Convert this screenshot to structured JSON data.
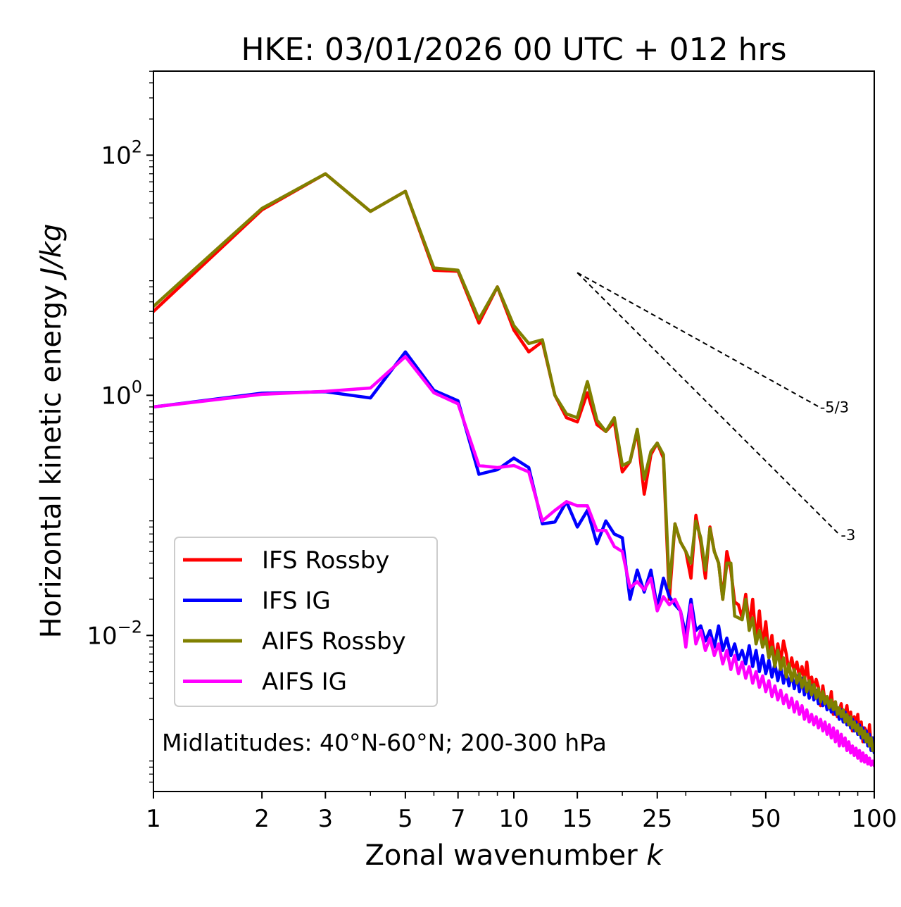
{
  "chart_data": {
    "type": "line",
    "title": "HKE: 03/01/2026 00 UTC + 012 hrs",
    "xlabel_text": "Zonal wavenumber ",
    "xlabel_var": "k",
    "ylabel_text": "Horizontal kinetic energy ",
    "ylabel_unit": "J/kg",
    "xscale": "log",
    "yscale": "log",
    "xlim": [
      1,
      100
    ],
    "ylim_log10": [
      -3.3,
      2.7
    ],
    "xticks": [
      1,
      2,
      3,
      5,
      7,
      10,
      15,
      25,
      50,
      100
    ],
    "xtick_labels": [
      "1",
      "2",
      "3",
      "5",
      "7",
      "10",
      "15",
      "25",
      "50",
      "100"
    ],
    "yticks": [
      {
        "exp": 2,
        "base": "10",
        "sup": "2"
      },
      {
        "exp": 0,
        "base": "10",
        "sup": "0"
      },
      {
        "exp": -2,
        "base": "10",
        "sup": "−2"
      }
    ],
    "annotation": "Midlatitudes: 40°N-60°N; 200-300 hPa",
    "reference_slopes": [
      {
        "label": "-5/3",
        "slope": -1.6667,
        "k_start": 15,
        "k_end": 70,
        "e_start": 10.5
      },
      {
        "label": "-3",
        "slope": -3,
        "k_start": 15,
        "k_end": 80,
        "e_start": 10.5
      }
    ],
    "legend_position": "lower-left",
    "x": [
      1,
      2,
      3,
      4,
      5,
      6,
      7,
      8,
      9,
      10,
      11,
      12,
      13,
      14,
      15,
      16,
      17,
      18,
      19,
      20,
      21,
      22,
      23,
      24,
      25,
      26,
      27,
      28,
      29,
      30,
      31,
      32,
      33,
      34,
      35,
      36,
      37,
      38,
      39,
      40,
      41,
      42,
      43,
      44,
      45,
      46,
      47,
      48,
      49,
      50,
      51,
      52,
      53,
      54,
      55,
      56,
      57,
      58,
      59,
      60,
      61,
      62,
      63,
      64,
      65,
      66,
      67,
      68,
      69,
      70,
      71,
      72,
      73,
      74,
      75,
      76,
      77,
      78,
      79,
      80,
      81,
      82,
      83,
      84,
      85,
      86,
      87,
      88,
      89,
      90,
      91,
      92,
      93,
      94,
      95,
      96,
      97,
      98,
      99,
      100
    ],
    "series": [
      {
        "name": "IFS Rossby",
        "color": "#ff0000",
        "values": [
          5.0,
          35.0,
          70.0,
          34.0,
          50.0,
          11.0,
          10.8,
          4.0,
          8.0,
          3.5,
          2.3,
          2.8,
          1.0,
          0.65,
          0.6,
          1.05,
          0.57,
          0.5,
          0.6,
          0.23,
          0.28,
          0.5,
          0.15,
          0.32,
          0.4,
          0.3,
          0.02,
          0.085,
          0.06,
          0.05,
          0.03,
          0.1,
          0.06,
          0.03,
          0.08,
          0.05,
          0.04,
          0.02,
          0.05,
          0.035,
          0.019,
          0.018,
          0.014,
          0.022,
          0.012,
          0.02,
          0.009,
          0.016,
          0.008,
          0.013,
          0.007,
          0.01,
          0.006,
          0.0085,
          0.006,
          0.009,
          0.007,
          0.005,
          0.0065,
          0.005,
          0.006,
          0.0045,
          0.0055,
          0.0042,
          0.006,
          0.004,
          0.0045,
          0.0035,
          0.0043,
          0.0037,
          0.0026,
          0.0038,
          0.0028,
          0.003,
          0.0025,
          0.0034,
          0.0022,
          0.0028,
          0.0021,
          0.0024,
          0.0027,
          0.0019,
          0.0022,
          0.0026,
          0.0018,
          0.0023,
          0.0016,
          0.0021,
          0.0017,
          0.0022,
          0.0015,
          0.0019,
          0.0013,
          0.0017,
          0.0016,
          0.0012,
          0.0018,
          0.0012,
          0.0014,
          0.0011
        ]
      },
      {
        "name": "IFS IG",
        "color": "#0000ff",
        "values": [
          0.8,
          1.04,
          1.07,
          0.95,
          2.3,
          1.1,
          0.9,
          0.22,
          0.24,
          0.3,
          0.25,
          0.085,
          0.088,
          0.13,
          0.08,
          0.11,
          0.058,
          0.09,
          0.07,
          0.065,
          0.02,
          0.035,
          0.023,
          0.035,
          0.017,
          0.03,
          0.021,
          0.018,
          0.016,
          0.01,
          0.02,
          0.011,
          0.012,
          0.009,
          0.011,
          0.008,
          0.012,
          0.0075,
          0.0095,
          0.0068,
          0.0085,
          0.0063,
          0.0075,
          0.0058,
          0.0082,
          0.0055,
          0.0075,
          0.005,
          0.0068,
          0.0048,
          0.0062,
          0.0045,
          0.0058,
          0.0042,
          0.0055,
          0.004,
          0.005,
          0.0038,
          0.0048,
          0.0036,
          0.0046,
          0.0034,
          0.0044,
          0.0032,
          0.004,
          0.003,
          0.0038,
          0.0029,
          0.0035,
          0.0027,
          0.0032,
          0.0026,
          0.003,
          0.0024,
          0.0028,
          0.0023,
          0.0027,
          0.0022,
          0.0025,
          0.002,
          0.0024,
          0.0019,
          0.0023,
          0.0018,
          0.0021,
          0.0017,
          0.002,
          0.0016,
          0.0019,
          0.0015,
          0.0018,
          0.0014,
          0.0017,
          0.0013,
          0.0016,
          0.0012,
          0.0015,
          0.0011,
          0.0014,
          0.00105
        ]
      },
      {
        "name": "AIFS Rossby",
        "color": "#808000",
        "values": [
          5.5,
          36.0,
          70.0,
          34.0,
          50.0,
          11.5,
          11.0,
          4.3,
          8.0,
          3.8,
          2.7,
          2.9,
          1.0,
          0.7,
          0.65,
          1.3,
          0.62,
          0.5,
          0.65,
          0.26,
          0.28,
          0.52,
          0.2,
          0.34,
          0.4,
          0.32,
          0.025,
          0.085,
          0.06,
          0.05,
          0.04,
          0.09,
          0.065,
          0.035,
          0.078,
          0.05,
          0.04,
          0.02,
          0.04,
          0.04,
          0.0145,
          0.014,
          0.0135,
          0.02,
          0.011,
          0.014,
          0.0085,
          0.011,
          0.008,
          0.0095,
          0.0065,
          0.008,
          0.0055,
          0.0075,
          0.0052,
          0.0065,
          0.0045,
          0.0058,
          0.0042,
          0.0052,
          0.004,
          0.0048,
          0.0037,
          0.0045,
          0.0034,
          0.0042,
          0.0032,
          0.0039,
          0.003,
          0.0036,
          0.0028,
          0.0034,
          0.0027,
          0.0031,
          0.0025,
          0.0029,
          0.0024,
          0.0028,
          0.0022,
          0.0025,
          0.0021,
          0.0024,
          0.0019,
          0.0022,
          0.0018,
          0.0021,
          0.0017,
          0.0019,
          0.0016,
          0.0018,
          0.0015,
          0.0017,
          0.0014,
          0.0016,
          0.0013,
          0.0015,
          0.0012,
          0.0014,
          0.0011,
          0.0012
        ]
      },
      {
        "name": "AIFS IG",
        "color": "#ff00ff",
        "values": [
          0.8,
          1.02,
          1.08,
          1.15,
          2.1,
          1.05,
          0.85,
          0.26,
          0.25,
          0.26,
          0.23,
          0.09,
          0.11,
          0.13,
          0.12,
          0.12,
          0.075,
          0.075,
          0.055,
          0.05,
          0.025,
          0.028,
          0.024,
          0.03,
          0.016,
          0.021,
          0.018,
          0.02,
          0.016,
          0.008,
          0.018,
          0.0085,
          0.011,
          0.0075,
          0.0095,
          0.0068,
          0.0085,
          0.0058,
          0.0075,
          0.0052,
          0.0068,
          0.0048,
          0.006,
          0.0044,
          0.0055,
          0.004,
          0.005,
          0.0037,
          0.0046,
          0.0034,
          0.0042,
          0.0031,
          0.0038,
          0.0029,
          0.0035,
          0.0027,
          0.0032,
          0.0025,
          0.003,
          0.0023,
          0.0028,
          0.0022,
          0.0026,
          0.002,
          0.0024,
          0.0019,
          0.0022,
          0.0018,
          0.0021,
          0.0017,
          0.002,
          0.0016,
          0.0019,
          0.0015,
          0.0018,
          0.0014,
          0.0017,
          0.0013,
          0.0016,
          0.0012,
          0.0015,
          0.0012,
          0.0014,
          0.0011,
          0.0013,
          0.00105,
          0.0012,
          0.001,
          0.00115,
          0.00095,
          0.0011,
          0.0009,
          0.00105,
          0.00088,
          0.001,
          0.00085,
          0.00095,
          0.00083,
          0.0009,
          0.00082
        ]
      }
    ]
  }
}
